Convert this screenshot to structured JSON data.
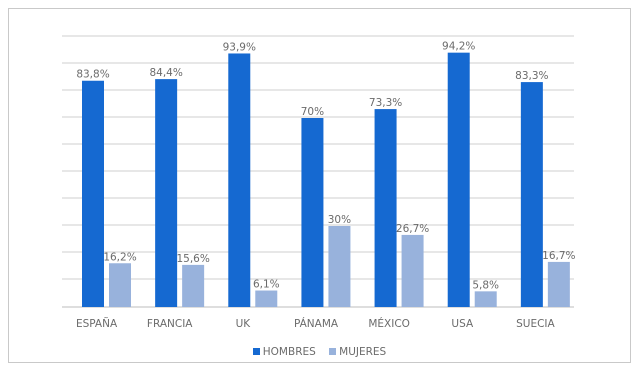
{
  "chart_data": {
    "type": "bar",
    "title": "",
    "xlabel": "",
    "ylabel": "",
    "ylim": [
      0,
      100
    ],
    "grid": true,
    "legend_position": "bottom",
    "categories": [
      "ESPAÑA",
      "FRANCIA",
      "UK",
      "PÁNAMA",
      "MÉXICO",
      "USA",
      "SUECIA"
    ],
    "series": [
      {
        "name": "HOMBRES",
        "color": "#1569d1",
        "values": [
          83.8,
          84.4,
          93.9,
          70,
          73.3,
          94.2,
          83.3
        ],
        "labels": [
          "83,8%",
          "84,4%",
          "93,9%",
          "70%",
          "73,3%",
          "94,2%",
          "83,3%"
        ]
      },
      {
        "name": "MUJERES",
        "color": "#98b2dc",
        "values": [
          16.2,
          15.6,
          6.1,
          30,
          26.7,
          5.8,
          16.7
        ],
        "labels": [
          "16,2%",
          "15,6%",
          "6,1%",
          "30%",
          "26,7%",
          "5,8%",
          "16,7%"
        ]
      }
    ]
  }
}
